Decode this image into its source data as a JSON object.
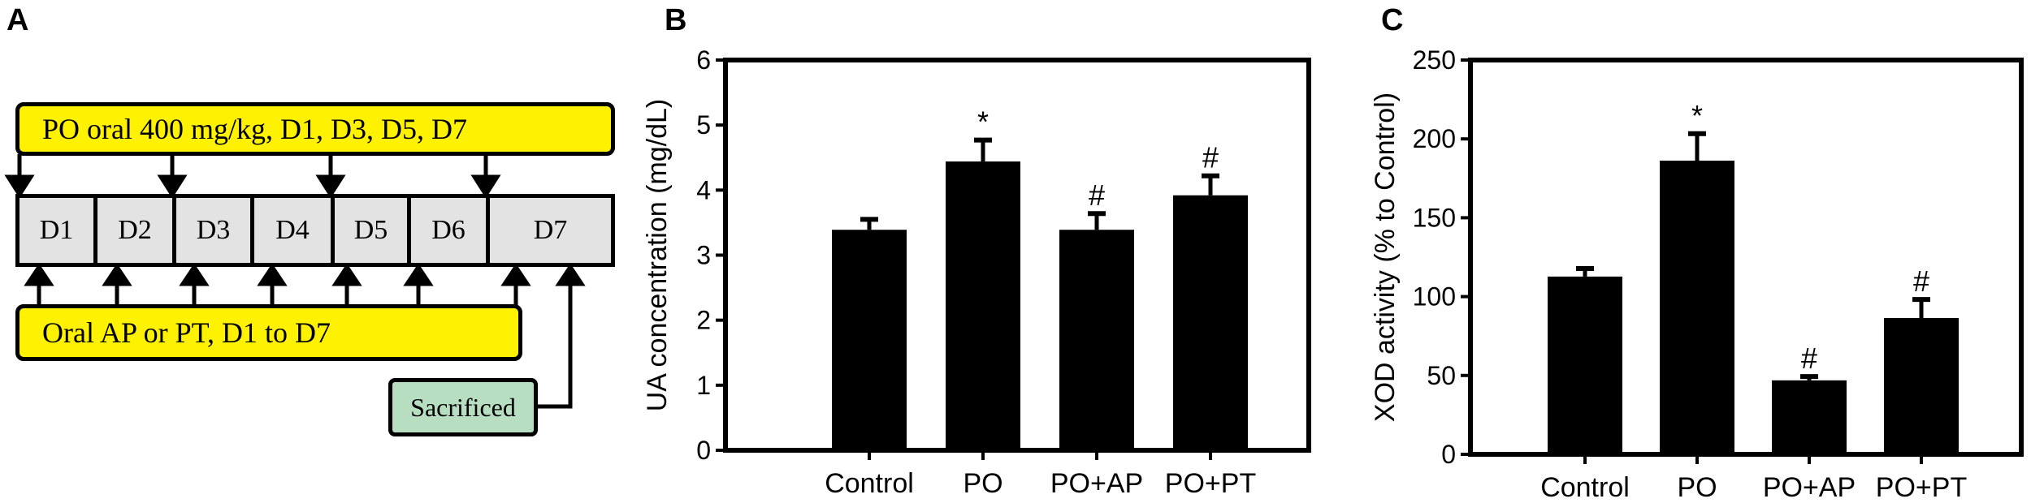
{
  "panel_a": {
    "letter": "A",
    "top_box": "PO oral 400 mg/kg, D1, D3, D5, D7",
    "days": [
      "D1",
      "D2",
      "D3",
      "D4",
      "D5",
      "D6",
      "D7"
    ],
    "bottom_box": "Oral AP or PT, D1 to D7",
    "end_box": "Sacrificed",
    "colors": {
      "yellow": "#fff200",
      "day_fill": "#e3e3e3",
      "sacrificed_fill": "#b7dec0"
    }
  },
  "panel_b": {
    "letter": "B"
  },
  "panel_c": {
    "letter": "C"
  },
  "chart_data": [
    {
      "type": "bar",
      "panel": "B",
      "title": "",
      "xlabel": "",
      "ylabel": "UA concentration (mg/dL)",
      "categories": [
        "Control",
        "PO",
        "PO+AP",
        "PO+PT"
      ],
      "values": [
        3.39,
        4.44,
        3.39,
        3.92
      ],
      "error_upper": [
        3.55,
        4.77,
        3.64,
        4.22
      ],
      "annotations": [
        "",
        "*",
        "#",
        "#"
      ],
      "ylim": [
        0,
        6
      ],
      "yticks": [
        0,
        1,
        2,
        3,
        4,
        5,
        6
      ],
      "bar_color": "#000000",
      "grid": false
    },
    {
      "type": "bar",
      "panel": "C",
      "title": "",
      "xlabel": "",
      "ylabel": "XOD activity (% to Control)",
      "categories": [
        "Control",
        "PO",
        "PO+AP",
        "PO+PT"
      ],
      "values": [
        112.7,
        186.2,
        46.9,
        86.4
      ],
      "error_upper": [
        117.8,
        203.3,
        49.3,
        98.2
      ],
      "annotations": [
        "",
        "*",
        "#",
        "#"
      ],
      "ylim": [
        0,
        250
      ],
      "yticks": [
        0,
        50,
        100,
        150,
        200,
        250
      ],
      "bar_color": "#000000",
      "grid": false
    }
  ]
}
